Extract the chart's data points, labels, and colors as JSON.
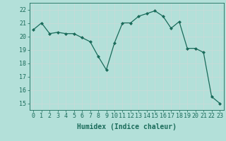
{
  "x": [
    0,
    1,
    2,
    3,
    4,
    5,
    6,
    7,
    8,
    9,
    10,
    11,
    12,
    13,
    14,
    15,
    16,
    17,
    18,
    19,
    20,
    21,
    22,
    23
  ],
  "y": [
    20.5,
    21.0,
    20.2,
    20.3,
    20.2,
    20.2,
    19.9,
    19.6,
    18.5,
    17.5,
    19.5,
    21.0,
    21.0,
    21.5,
    21.7,
    21.9,
    21.5,
    20.6,
    21.1,
    19.1,
    19.1,
    18.8,
    15.5,
    15.0
  ],
  "line_color": "#1a6b5a",
  "marker": "D",
  "marker_size": 2.0,
  "bg_color": "#b3e0d9",
  "grid_color": "#c8dbd8",
  "grid_minor_color": "#d6e8e4",
  "xlabel": "Humidex (Indice chaleur)",
  "ylim": [
    14.5,
    22.5
  ],
  "xlim": [
    -0.5,
    23.5
  ],
  "yticks": [
    15,
    16,
    17,
    18,
    19,
    20,
    21,
    22
  ],
  "xticks": [
    0,
    1,
    2,
    3,
    4,
    5,
    6,
    7,
    8,
    9,
    10,
    11,
    12,
    13,
    14,
    15,
    16,
    17,
    18,
    19,
    20,
    21,
    22,
    23
  ],
  "label_fontsize": 7,
  "tick_fontsize": 6
}
